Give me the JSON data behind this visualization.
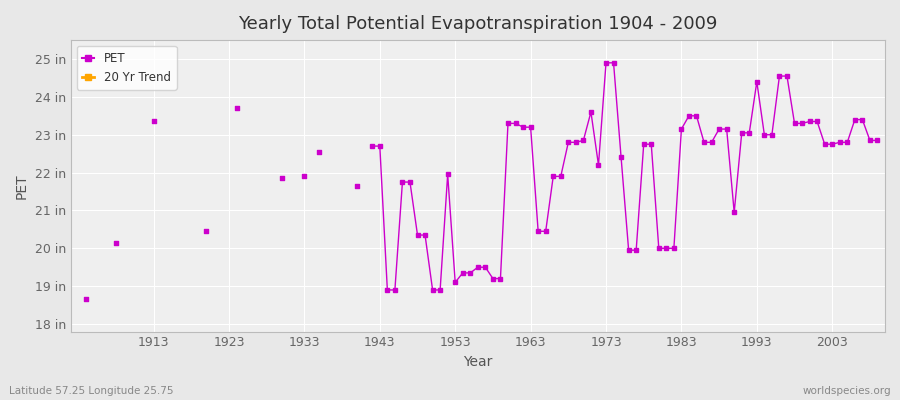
{
  "title": "Yearly Total Potential Evapotranspiration 1904 - 2009",
  "xlabel": "Year",
  "ylabel": "PET",
  "subtitle_left": "Latitude 57.25 Longitude 25.75",
  "subtitle_right": "worldspecies.org",
  "ylim": [
    17.8,
    25.5
  ],
  "xlim": [
    1902,
    2010
  ],
  "yticks": [
    18,
    19,
    20,
    21,
    22,
    23,
    24,
    25
  ],
  "ytick_labels": [
    "18 in",
    "19 in",
    "20 in",
    "21 in",
    "22 in",
    "23 in",
    "24 in",
    "25 in"
  ],
  "xticks": [
    1913,
    1923,
    1933,
    1943,
    1953,
    1963,
    1973,
    1983,
    1993,
    2003
  ],
  "pet_color": "#cc00cc",
  "trend_color": "#ffa500",
  "bg_color": "#e8e8e8",
  "plot_bg_color": "#efefef",
  "grid_color": "#ffffff",
  "legend_bg": "#ffffff",
  "segments": [
    {
      "years": [
        1904
      ],
      "values": [
        18.65
      ]
    },
    {
      "years": [
        1908
      ],
      "values": [
        20.15
      ]
    },
    {
      "years": [
        1913
      ],
      "values": [
        23.35
      ]
    },
    {
      "years": [
        1920
      ],
      "values": [
        20.45
      ]
    },
    {
      "years": [
        1924
      ],
      "values": [
        23.7
      ]
    },
    {
      "years": [
        1930
      ],
      "values": [
        21.85
      ]
    },
    {
      "years": [
        1933
      ],
      "values": [
        21.9
      ]
    },
    {
      "years": [
        1935
      ],
      "values": [
        22.55
      ]
    },
    {
      "years": [
        1940
      ],
      "values": [
        21.65
      ]
    },
    {
      "years": [
        1942,
        1943,
        1944,
        1945,
        1946,
        1947,
        1948,
        1949,
        1950,
        1951,
        1952,
        1953,
        1954,
        1955,
        1956,
        1957,
        1958,
        1959,
        1960,
        1961,
        1962,
        1963,
        1964,
        1965,
        1966,
        1967,
        1968,
        1969,
        1970,
        1971,
        1972,
        1973,
        1974,
        1975,
        1976,
        1977,
        1978,
        1979,
        1980,
        1981,
        1982,
        1983,
        1984,
        1985,
        1986,
        1987,
        1988,
        1989,
        1990,
        1991,
        1992,
        1993,
        1994,
        1995,
        1996,
        1997,
        1998,
        1999,
        2000,
        2001,
        2002,
        2003,
        2004,
        2005,
        2006,
        2007,
        2008,
        2009
      ],
      "values": [
        22.7,
        22.7,
        18.9,
        18.9,
        21.75,
        21.75,
        20.35,
        20.35,
        18.9,
        18.9,
        21.95,
        19.1,
        19.35,
        19.35,
        19.5,
        19.5,
        19.2,
        19.2,
        23.3,
        23.3,
        23.2,
        23.2,
        20.45,
        20.45,
        21.9,
        21.9,
        22.8,
        22.8,
        22.85,
        23.6,
        22.2,
        24.9,
        24.9,
        22.4,
        19.95,
        19.95,
        22.75,
        22.75,
        20.0,
        20.0,
        20.0,
        23.15,
        23.5,
        23.5,
        22.8,
        22.8,
        23.15,
        23.15,
        20.95,
        23.05,
        23.05,
        24.4,
        23.0,
        23.0,
        24.55,
        24.55,
        23.3,
        23.3,
        23.35,
        23.35,
        22.75,
        22.75,
        22.8,
        22.8,
        23.4,
        23.4,
        22.85,
        22.85
      ]
    }
  ]
}
